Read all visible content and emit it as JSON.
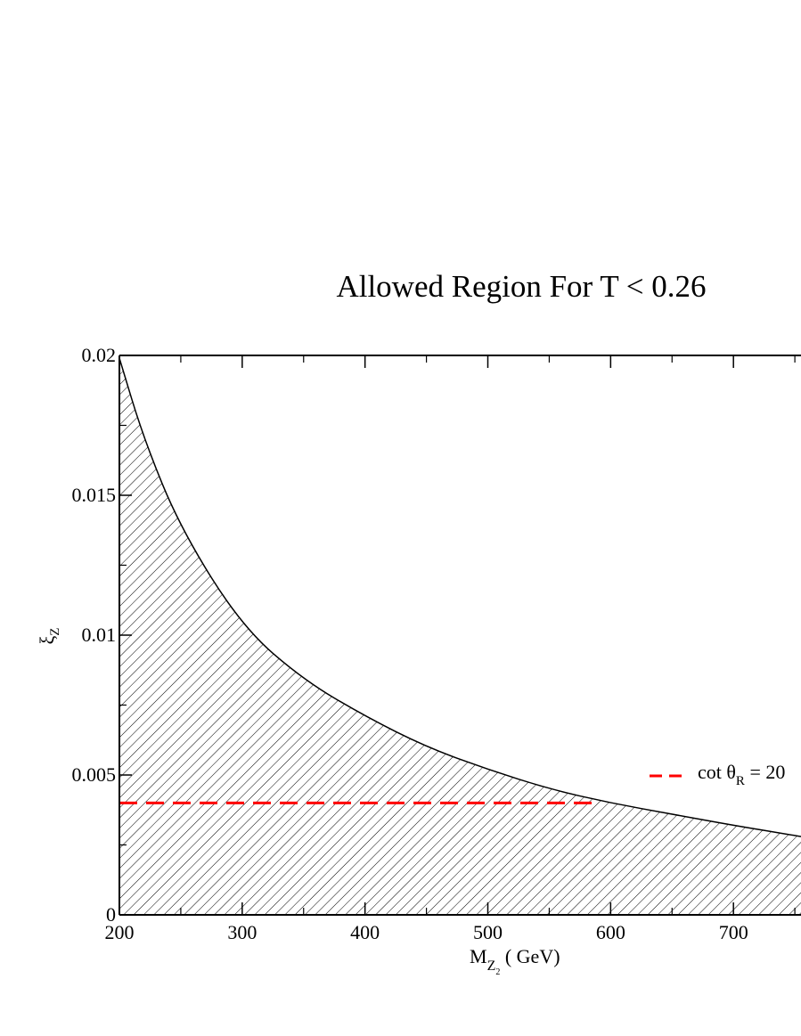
{
  "chart_data": {
    "type": "area",
    "title": "Allowed Region For T < 0.26",
    "xlabel": "M",
    "xlabel_sub": "Z",
    "xlabel_subsub": "2",
    "xlabel_unit": " ( GeV)",
    "ylabel": "ξ",
    "ylabel_sub": "Z",
    "xlim": [
      200,
      755
    ],
    "ylim": [
      0,
      0.02
    ],
    "x_ticks": [
      200,
      300,
      400,
      500,
      600,
      700
    ],
    "x_tick_labels": [
      "200",
      "300",
      "400",
      "500",
      "600",
      "700"
    ],
    "y_ticks": [
      0,
      0.005,
      0.01,
      0.015,
      0.02
    ],
    "y_tick_labels": [
      "0",
      "0.005",
      "0.01",
      "0.015",
      "0.02"
    ],
    "series": [
      {
        "name": "",
        "kind": "hatched-area",
        "x": [
          200,
          220,
          250,
          300,
          350,
          400,
          450,
          500,
          550,
          600,
          650,
          700,
          755
        ],
        "y": [
          0.0199,
          0.017,
          0.0138,
          0.0103,
          0.0084,
          0.0071,
          0.006,
          0.0052,
          0.0045,
          0.004,
          0.0036,
          0.0032,
          0.0028
        ]
      },
      {
        "name": "cot θ",
        "name_sub": "R",
        "name_suffix": " = 20",
        "kind": "dashed-line",
        "color": "#ff0000",
        "x": [
          200,
          585
        ],
        "y": [
          0.004,
          0.004
        ]
      }
    ],
    "legend": "right",
    "grid": false
  }
}
